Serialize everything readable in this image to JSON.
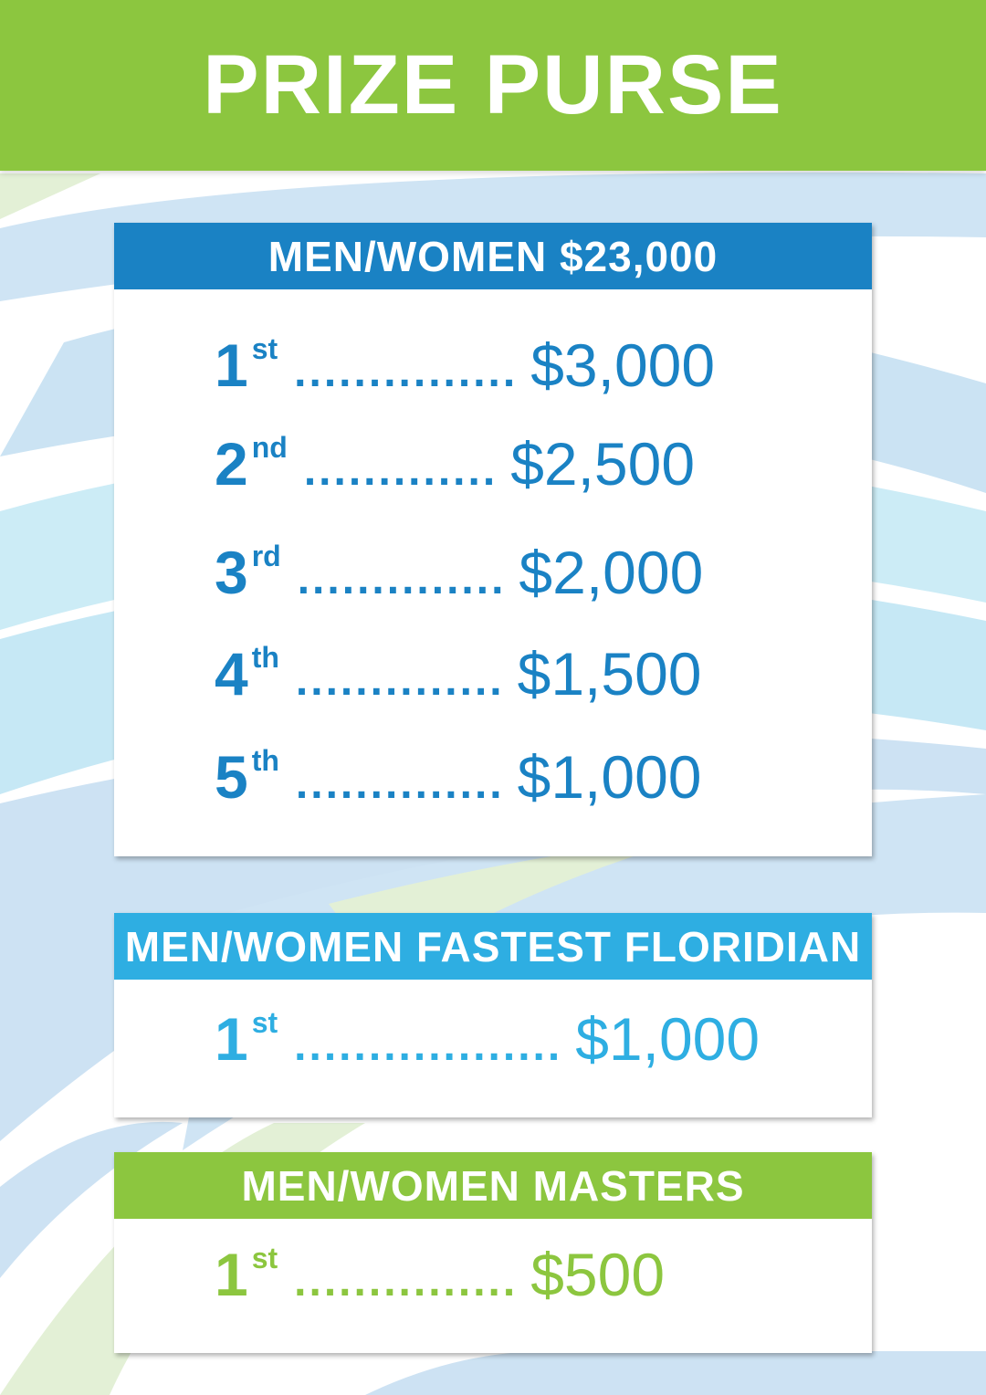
{
  "title": "PRIZE PURSE",
  "colors": {
    "green": "#8cc63f",
    "blue": "#1a82c4",
    "light_blue": "#2eaee2"
  },
  "sections": [
    {
      "heading": "MEN/WOMEN $23,000",
      "color": "#1a82c4",
      "rows": [
        {
          "place": "1",
          "suffix": "st",
          "dots": "...............",
          "amount": "$3,000"
        },
        {
          "place": "2",
          "suffix": "nd",
          "dots": ".............",
          "amount": "$2,500"
        },
        {
          "place": "3",
          "suffix": "rd",
          "dots": "..............",
          "amount": "$2,000"
        },
        {
          "place": "4",
          "suffix": "th",
          "dots": "..............",
          "amount": "$1,500"
        },
        {
          "place": "5",
          "suffix": "th",
          "dots": "..............",
          "amount": "$1,000"
        }
      ]
    },
    {
      "heading": "MEN/WOMEN FASTEST FLORIDIAN",
      "color": "#2eaee2",
      "rows": [
        {
          "place": "1",
          "suffix": "st",
          "dots": "..................",
          "amount": "$1,000"
        }
      ]
    },
    {
      "heading": "MEN/WOMEN MASTERS",
      "color": "#8cc63f",
      "rows": [
        {
          "place": "1",
          "suffix": "st",
          "dots": "...............",
          "amount": "$500"
        }
      ]
    }
  ]
}
